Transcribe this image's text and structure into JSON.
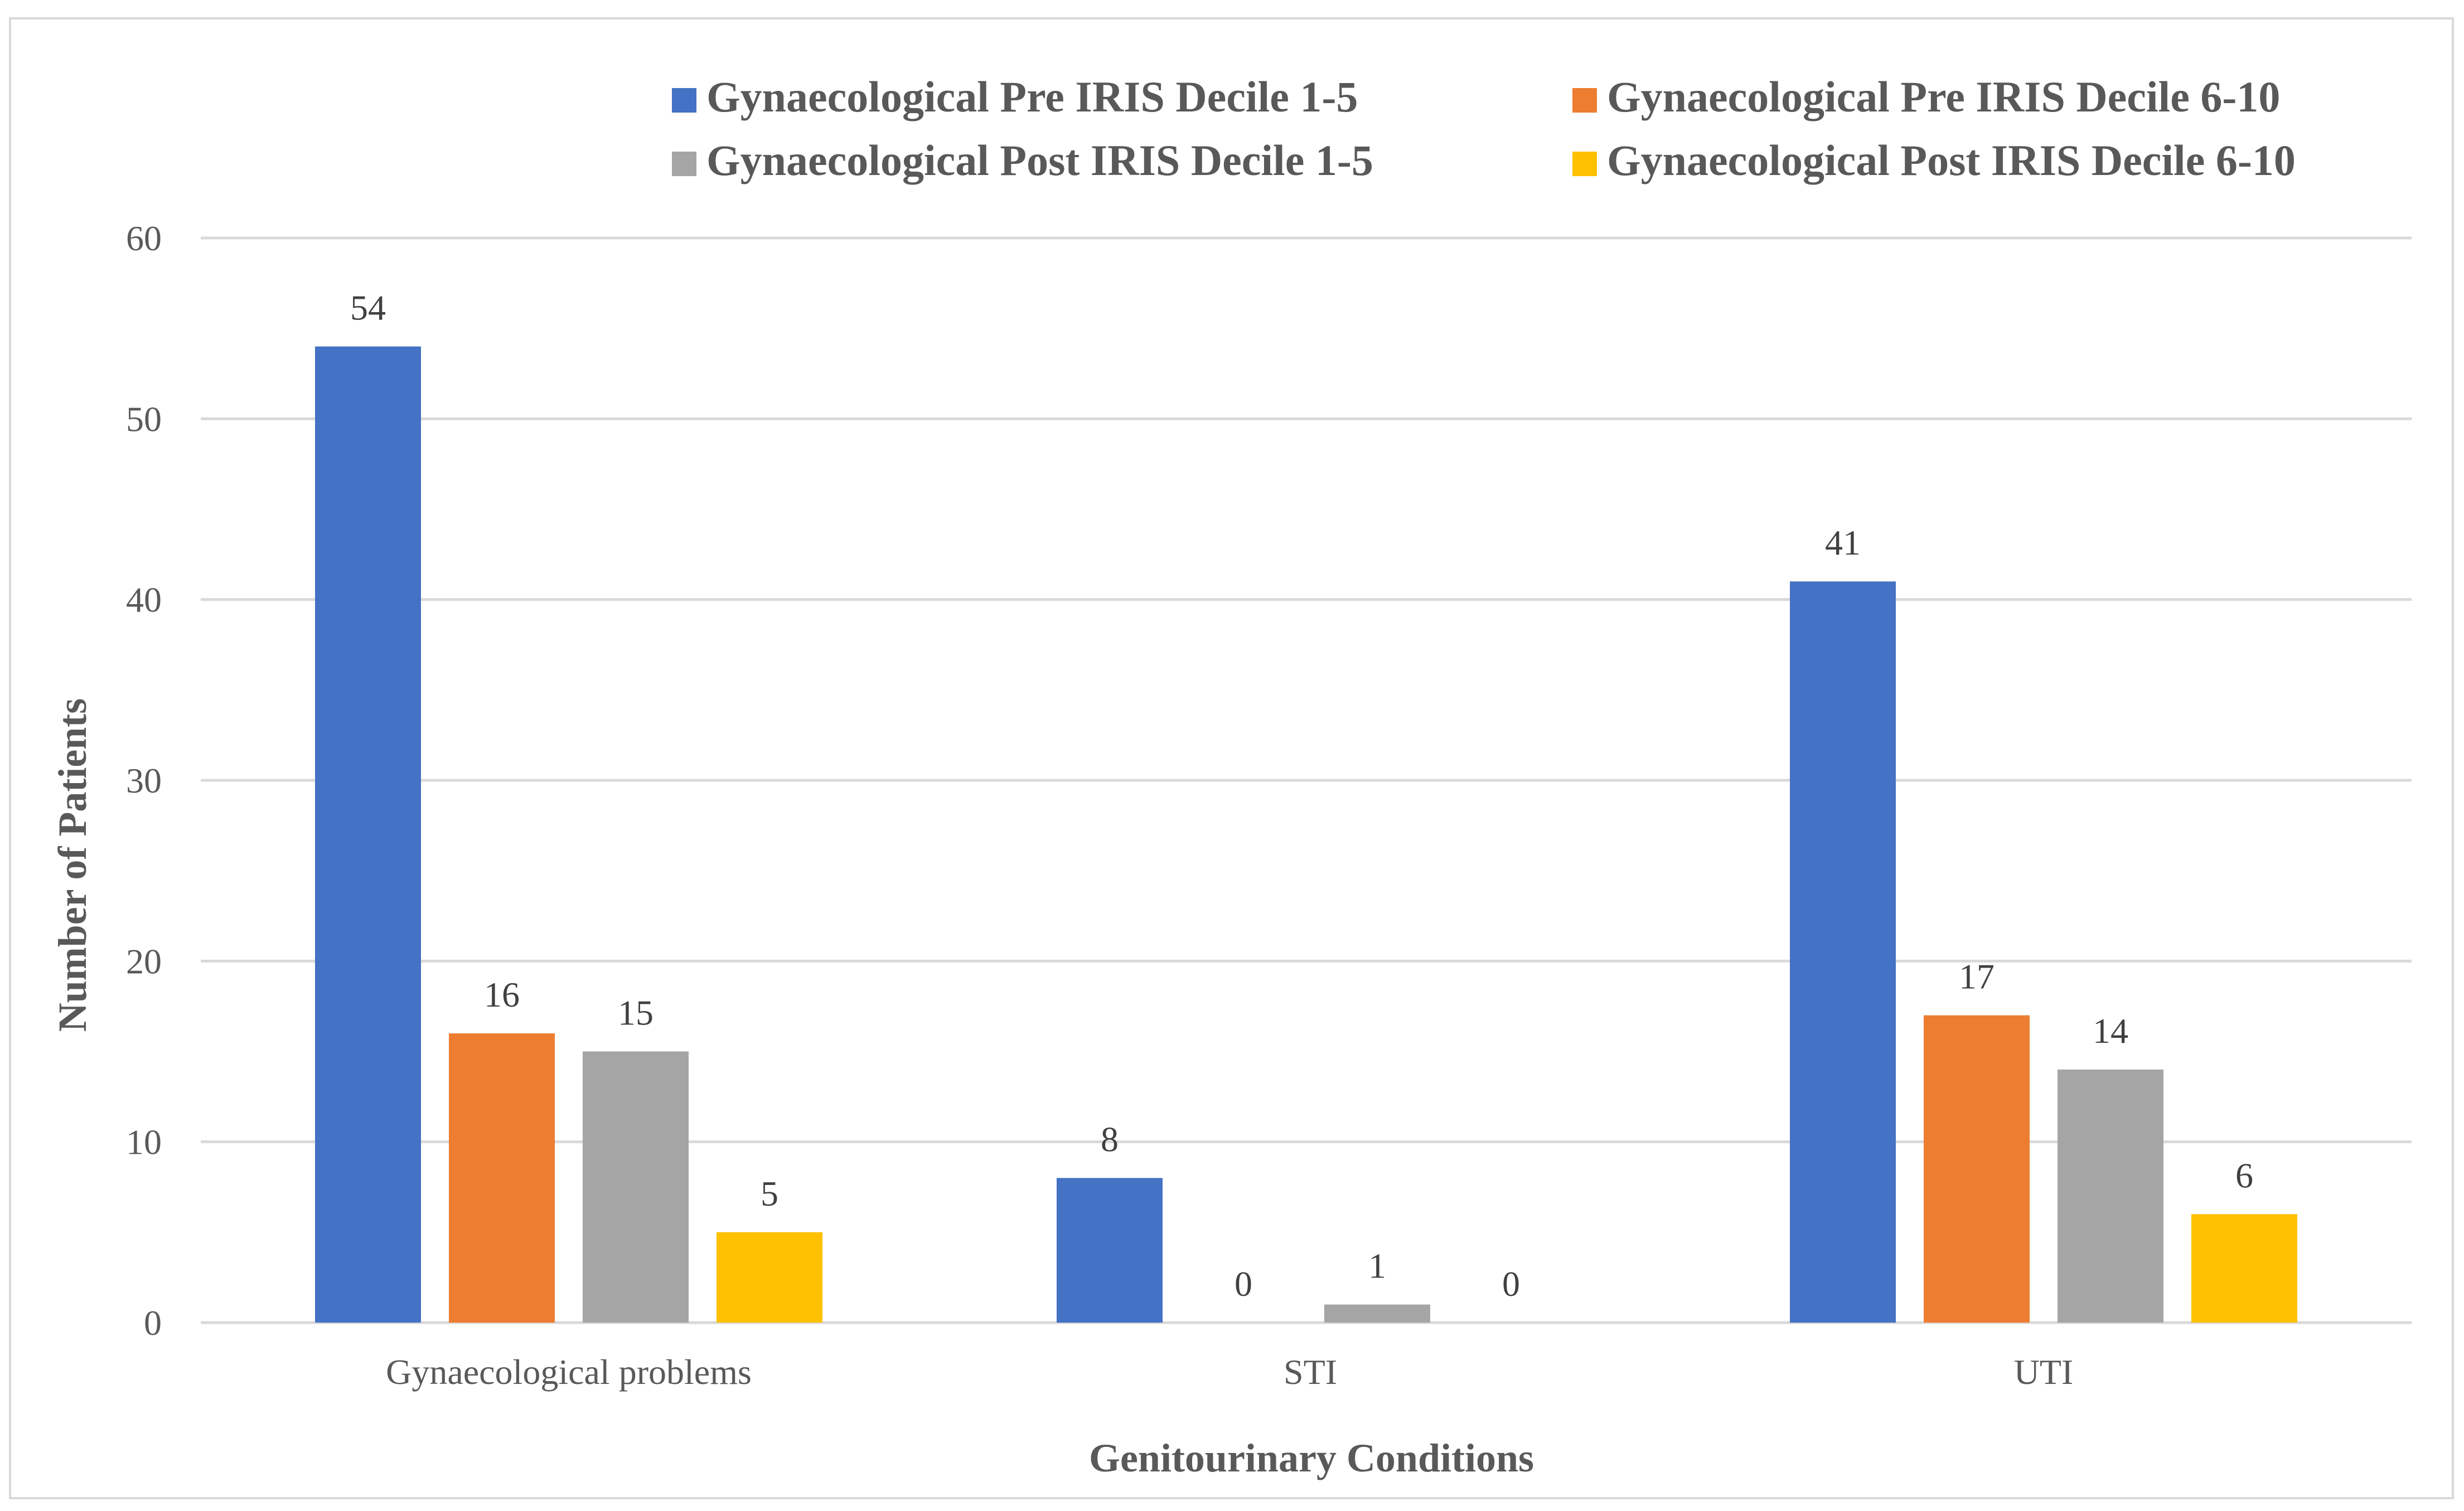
{
  "chart_data": {
    "type": "bar",
    "title": "",
    "xlabel": "Genitourinary Conditions",
    "ylabel": "Number of Patients",
    "ylim": [
      0,
      60
    ],
    "yticks": [
      "0",
      "10",
      "20",
      "30",
      "40",
      "50",
      "60"
    ],
    "grid": true,
    "legend_position": "top",
    "categories": [
      "Gynaecological problems",
      "STI",
      "UTI"
    ],
    "series": [
      {
        "name": "Gynaecological Pre IRIS Decile 1-5",
        "color": "#4472c4",
        "values": [
          54,
          8,
          41
        ]
      },
      {
        "name": "Gynaecological Pre IRIS Decile 6-10",
        "color": "#ed7d31",
        "values": [
          16,
          0,
          17
        ]
      },
      {
        "name": "Gynaecological Post IRIS Decile 1-5",
        "color": "#a5a5a5",
        "values": [
          15,
          1,
          14
        ]
      },
      {
        "name": "Gynaecological Post IRIS Decile 6-10",
        "color": "#ffc000",
        "values": [
          5,
          0,
          6
        ]
      }
    ]
  }
}
